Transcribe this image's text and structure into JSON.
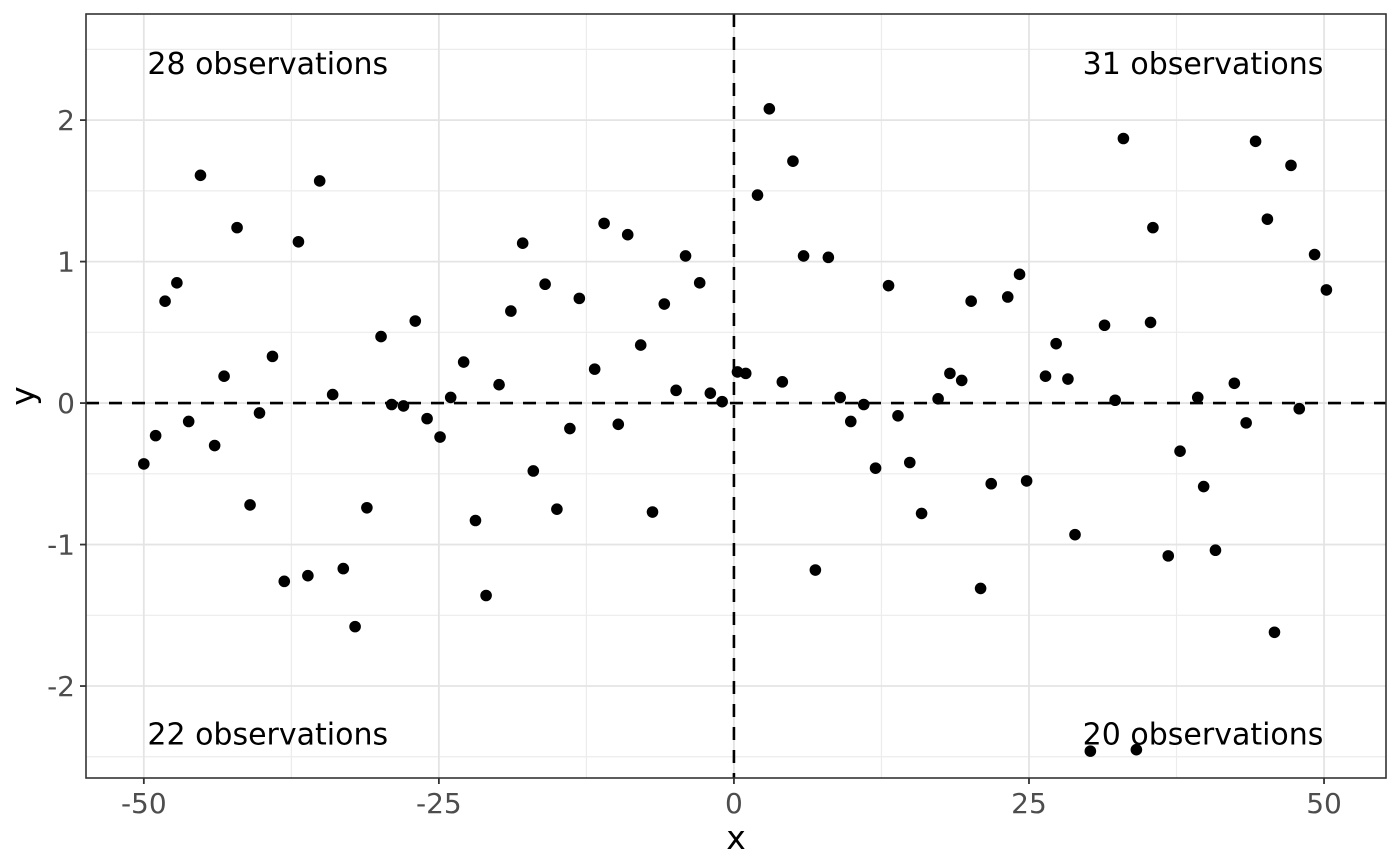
{
  "chart_data": {
    "type": "scatter",
    "title": "",
    "xlabel": "x",
    "ylabel": "y",
    "xlim": [
      -54.9,
      55.25
    ],
    "ylim": [
      -2.65,
      2.75
    ],
    "x_major_ticks": [
      -50,
      -25,
      0,
      25,
      50
    ],
    "x_tick_labels": [
      "-50",
      "-25",
      "0",
      "25",
      "50"
    ],
    "x_minor_ticks": [
      -37.5,
      -12.5,
      12.5,
      37.5
    ],
    "y_major_ticks": [
      2,
      1,
      0,
      -1,
      -2
    ],
    "y_tick_labels": [
      "2",
      "1",
      "0",
      "-1",
      "-2"
    ],
    "y_minor_ticks": [
      2.5,
      1.5,
      0.5,
      -0.5,
      -1.5,
      -2.5
    ],
    "grid": true,
    "legend_position": "none",
    "reference_lines": [
      {
        "orientation": "vertical",
        "at": 0,
        "style": "dashed"
      },
      {
        "orientation": "horizontal",
        "at": 0,
        "style": "dashed"
      }
    ],
    "quadrant_annotations": [
      {
        "label": "28 observations",
        "quadrant": "top-left",
        "x": -39.5,
        "y": 2.4
      },
      {
        "label": "31 observations",
        "quadrant": "top-right",
        "x": 39.75,
        "y": 2.4
      },
      {
        "label": "22 observations",
        "quadrant": "bottom-left",
        "x": -39.5,
        "y": -2.34
      },
      {
        "label": "20 observations",
        "quadrant": "bottom-right",
        "x": 39.75,
        "y": -2.34
      }
    ],
    "points": [
      [
        -45.2,
        1.61
      ],
      [
        -35.1,
        1.57
      ],
      [
        -42.1,
        1.24
      ],
      [
        -36.9,
        1.14
      ],
      [
        -47.2,
        0.85
      ],
      [
        -48.2,
        0.72
      ],
      [
        -17.9,
        1.13
      ],
      [
        -11.0,
        1.27
      ],
      [
        -9.0,
        1.19
      ],
      [
        -4.1,
        1.04
      ],
      [
        -16.0,
        0.84
      ],
      [
        -13.1,
        0.74
      ],
      [
        -5.9,
        0.7
      ],
      [
        -2.9,
        0.85
      ],
      [
        -18.9,
        0.65
      ],
      [
        -27.0,
        0.58
      ],
      [
        -29.9,
        0.47
      ],
      [
        -7.9,
        0.41
      ],
      [
        -39.1,
        0.33
      ],
      [
        -22.9,
        0.29
      ],
      [
        -11.8,
        0.24
      ],
      [
        -43.2,
        0.19
      ],
      [
        -19.9,
        0.13
      ],
      [
        -34.0,
        0.06
      ],
      [
        -4.9,
        0.09
      ],
      [
        -24.0,
        0.04
      ],
      [
        -2.0,
        0.07
      ],
      [
        -1.0,
        0.01
      ],
      [
        0.3,
        0.22
      ],
      [
        1.0,
        0.21
      ],
      [
        2.0,
        1.47
      ],
      [
        3.0,
        2.08
      ],
      [
        5.0,
        1.71
      ],
      [
        4.1,
        0.15
      ],
      [
        5.9,
        1.04
      ],
      [
        8.0,
        1.03
      ],
      [
        9.0,
        0.04
      ],
      [
        13.1,
        0.83
      ],
      [
        17.3,
        0.03
      ],
      [
        18.3,
        0.21
      ],
      [
        19.3,
        0.16
      ],
      [
        20.1,
        0.72
      ],
      [
        23.2,
        0.75
      ],
      [
        24.2,
        0.91
      ],
      [
        26.4,
        0.19
      ],
      [
        27.3,
        0.42
      ],
      [
        28.3,
        0.17
      ],
      [
        31.4,
        0.55
      ],
      [
        32.3,
        0.02
      ],
      [
        33.0,
        1.87
      ],
      [
        35.3,
        0.57
      ],
      [
        35.5,
        1.24
      ],
      [
        39.3,
        0.04
      ],
      [
        42.4,
        0.14
      ],
      [
        44.2,
        1.85
      ],
      [
        45.2,
        1.3
      ],
      [
        47.2,
        1.68
      ],
      [
        49.2,
        1.05
      ],
      [
        50.2,
        0.8
      ],
      [
        -29.0,
        -0.01
      ],
      [
        -28.0,
        -0.02
      ],
      [
        -40.2,
        -0.07
      ],
      [
        -26.0,
        -0.11
      ],
      [
        -46.2,
        -0.13
      ],
      [
        -9.8,
        -0.15
      ],
      [
        -13.9,
        -0.18
      ],
      [
        -49.0,
        -0.23
      ],
      [
        -24.9,
        -0.24
      ],
      [
        -44.0,
        -0.3
      ],
      [
        -50.0,
        -0.43
      ],
      [
        -17.0,
        -0.48
      ],
      [
        -41.0,
        -0.72
      ],
      [
        -31.1,
        -0.74
      ],
      [
        -15.0,
        -0.75
      ],
      [
        -6.9,
        -0.77
      ],
      [
        -21.9,
        -0.83
      ],
      [
        -33.1,
        -1.17
      ],
      [
        -36.1,
        -1.22
      ],
      [
        -38.1,
        -1.26
      ],
      [
        -21.0,
        -1.36
      ],
      [
        -32.1,
        -1.58
      ],
      [
        11.0,
        -0.01
      ],
      [
        47.9,
        -0.04
      ],
      [
        13.9,
        -0.09
      ],
      [
        9.9,
        -0.13
      ],
      [
        43.4,
        -0.14
      ],
      [
        37.8,
        -0.34
      ],
      [
        14.9,
        -0.42
      ],
      [
        12.0,
        -0.46
      ],
      [
        24.8,
        -0.55
      ],
      [
        21.8,
        -0.57
      ],
      [
        39.8,
        -0.59
      ],
      [
        15.9,
        -0.78
      ],
      [
        28.9,
        -0.93
      ],
      [
        40.8,
        -1.04
      ],
      [
        36.8,
        -1.08
      ],
      [
        6.9,
        -1.18
      ],
      [
        20.9,
        -1.31
      ],
      [
        45.8,
        -1.62
      ],
      [
        34.1,
        -2.45
      ],
      [
        30.2,
        -2.46
      ]
    ]
  },
  "colors": {
    "background": "#ffffff",
    "panel_background": "#ffffff",
    "grid_major": "#e4e4e4",
    "grid_minor": "#ececec",
    "panel_border": "#333333",
    "tick_mark": "#333333",
    "tick_label": "#4d4d4d",
    "axis_title": "#000000",
    "point": "#000000",
    "reference_line": "#000000",
    "annotation": "#000000"
  }
}
